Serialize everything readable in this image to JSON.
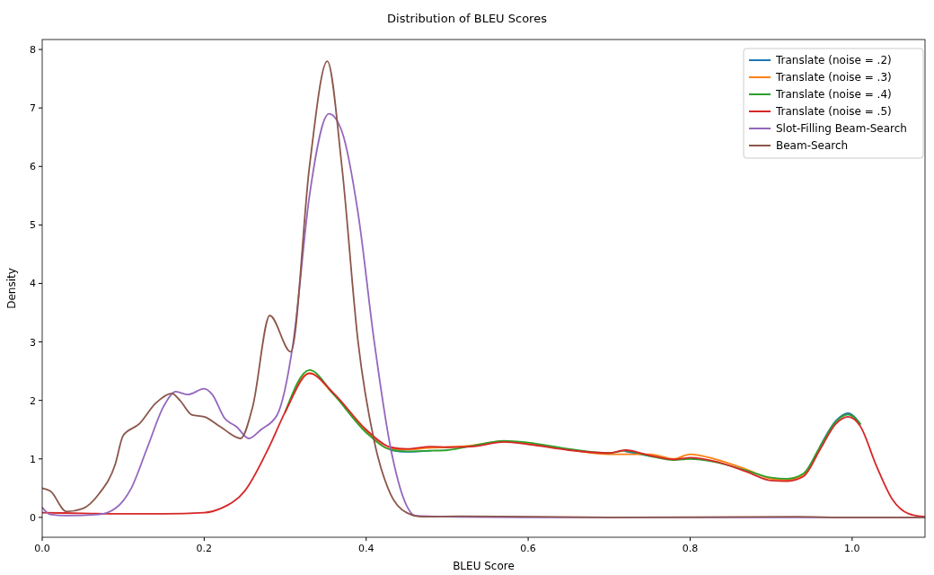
{
  "chart_data": {
    "type": "line",
    "title": "Distribution of BLEU Scores",
    "xlabel": "BLEU Score",
    "ylabel": "Density",
    "xlim": [
      0,
      1.09
    ],
    "ylim": [
      -0.34,
      8.17
    ],
    "xticks": [
      {
        "value": 0,
        "label": "0.0"
      },
      {
        "value": 0.2,
        "label": "0.2"
      },
      {
        "value": 0.4,
        "label": "0.4"
      },
      {
        "value": 0.6,
        "label": "0.6"
      },
      {
        "value": 0.8,
        "label": "0.8"
      },
      {
        "value": 1.0,
        "label": "1.0"
      }
    ],
    "yticks": [
      0,
      1,
      2,
      3,
      4,
      5,
      6,
      7,
      8
    ],
    "legend": "top right",
    "grid": false,
    "marker": "none",
    "line_style": "solid",
    "x": [
      0,
      0.05,
      0.1,
      0.15,
      0.2,
      0.22,
      0.25,
      0.28,
      0.3,
      0.33,
      0.36,
      0.4,
      0.43,
      0.45,
      0.48,
      0.5,
      0.53,
      0.57,
      0.6,
      0.65,
      0.7,
      0.72,
      0.75,
      0.78,
      0.8,
      0.83,
      0.87,
      0.9,
      0.92,
      0.94,
      0.96,
      0.98,
      0.995,
      1.01,
      1.03,
      1.05,
      1.07,
      1.09
    ],
    "series": [
      {
        "name": "Translate (noise = .2)",
        "color": "#1f77b4",
        "values": [
          null,
          null,
          null,
          null,
          null,
          null,
          null,
          null,
          null,
          null,
          null,
          null,
          1.15,
          1.12,
          1.14,
          null,
          null,
          null,
          null,
          null,
          null,
          1.13,
          1.05,
          null,
          null,
          null,
          null,
          null,
          null,
          null,
          1.2,
          1.65,
          1.78,
          1.6,
          null,
          null,
          null,
          null
        ]
      },
      {
        "name": "Translate (noise = .3)",
        "color": "#ff7f0e",
        "values": [
          null,
          null,
          null,
          null,
          null,
          null,
          null,
          null,
          1.8,
          2.47,
          2.1,
          1.47,
          1.17,
          1.16,
          1.19,
          1.2,
          1.23,
          1.3,
          1.26,
          1.16,
          1.08,
          1.08,
          1.08,
          1.0,
          1.08,
          1.0,
          0.82,
          0.66,
          0.64,
          0.73,
          1.18,
          null,
          null,
          null,
          null,
          null,
          null,
          null
        ]
      },
      {
        "name": "Translate (noise = .4)",
        "color": "#2ca02c",
        "values": [
          null,
          null,
          null,
          null,
          null,
          null,
          null,
          null,
          1.8,
          2.52,
          2.1,
          1.45,
          1.16,
          1.13,
          1.14,
          1.15,
          1.22,
          1.31,
          1.28,
          1.17,
          1.1,
          1.14,
          1.05,
          0.98,
          1.0,
          0.95,
          0.8,
          0.68,
          0.66,
          0.75,
          1.2,
          1.64,
          1.76,
          1.6,
          null,
          null,
          null,
          null
        ]
      },
      {
        "name": "Translate (noise = .5)",
        "color": "#d62728",
        "values": [
          0.08,
          0.07,
          0.06,
          0.06,
          0.08,
          0.15,
          0.45,
          1.2,
          1.8,
          2.46,
          2.12,
          1.5,
          1.2,
          1.17,
          1.21,
          1.2,
          1.21,
          1.29,
          1.25,
          1.15,
          1.1,
          1.15,
          1.06,
          0.99,
          1.02,
          0.96,
          0.78,
          0.63,
          0.62,
          0.7,
          1.15,
          1.6,
          1.72,
          1.56,
          0.88,
          0.3,
          0.06,
          0.01
        ]
      },
      {
        "name": "Slot-Filling Beam-Search",
        "color": "#9467bd",
        "x": [
          0,
          0.01,
          0.03,
          0.07,
          0.09,
          0.11,
          0.13,
          0.15,
          0.165,
          0.18,
          0.2,
          0.21,
          0.225,
          0.24,
          0.255,
          0.27,
          0.29,
          0.31,
          0.33,
          0.354,
          0.37,
          0.39,
          0.41,
          0.43,
          0.45,
          0.46,
          0.5,
          0.6,
          0.8,
          1.0,
          1.09
        ],
        "values": [
          0.17,
          0.05,
          0.03,
          0.05,
          0.15,
          0.5,
          1.2,
          1.9,
          2.15,
          2.1,
          2.2,
          2.1,
          1.7,
          1.55,
          1.35,
          1.5,
          1.75,
          3.0,
          5.5,
          6.9,
          6.6,
          5.2,
          3.0,
          1.2,
          0.2,
          0.03,
          0.01,
          0,
          0,
          0,
          0
        ]
      },
      {
        "name": "Beam-Search",
        "color": "#8c564b",
        "x": [
          0,
          0.01,
          0.03,
          0.05,
          0.07,
          0.09,
          0.1,
          0.12,
          0.14,
          0.16,
          0.17,
          0.185,
          0.2,
          0.22,
          0.245,
          0.26,
          0.281,
          0.307,
          0.33,
          0.352,
          0.37,
          0.39,
          0.41,
          0.43,
          0.45,
          0.47,
          0.52,
          0.7,
          0.93,
          1.0,
          1.09
        ],
        "values": [
          0.5,
          0.45,
          0.1,
          0.15,
          0.4,
          0.9,
          1.4,
          1.6,
          1.95,
          2.12,
          2.0,
          1.75,
          1.72,
          1.55,
          1.35,
          1.9,
          3.45,
          2.83,
          6.0,
          7.8,
          6.0,
          3.0,
          1.3,
          0.4,
          0.08,
          0.01,
          0.02,
          0,
          0.01,
          0,
          0
        ]
      }
    ]
  }
}
